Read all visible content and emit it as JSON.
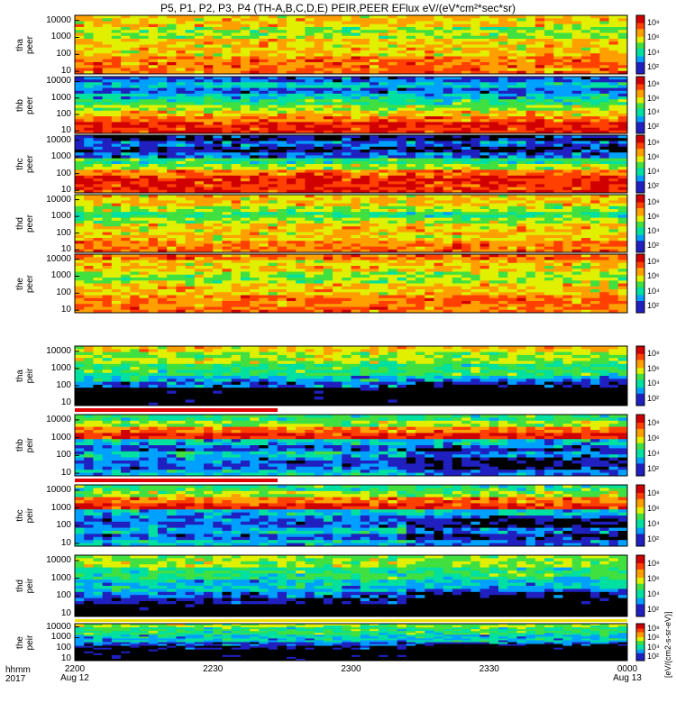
{
  "title": "P5, P1, P2, P3, P4 (TH-A,B,C,D,E) PEIR,PEER EFlux eV/(eV*cm²*sec*sr)",
  "colorbar_unit": "[eV/(cm2-s-sr-eV)]",
  "x_axis": {
    "label_hhmm": "hhmm",
    "label_year": "2017",
    "ticks": [
      {
        "time": "2200",
        "date": "Aug 12"
      },
      {
        "time": "2230",
        "date": ""
      },
      {
        "time": "2300",
        "date": ""
      },
      {
        "time": "2330",
        "date": ""
      },
      {
        "time": "0000",
        "date": "Aug 13"
      }
    ]
  },
  "chart_data": {
    "type": "heatmap",
    "x_range": [
      "2017-08-12 22:00",
      "2017-08-13 00:00"
    ],
    "y_scale": "log",
    "y_ticks": [
      "10",
      "100",
      "1000",
      "10000"
    ],
    "colorbar_ticks": [
      "10²",
      "10⁴",
      "10⁶",
      "10⁸"
    ],
    "colormap": [
      "#000000",
      "#2020c0",
      "#00a0ff",
      "#00e0a0",
      "#40e040",
      "#e0f000",
      "#ffa000",
      "#ff4000",
      "#d00000"
    ],
    "panels": [
      {
        "probe": "tha",
        "species": "peer"
      },
      {
        "probe": "thb",
        "species": "peer"
      },
      {
        "probe": "thc",
        "species": "peer"
      },
      {
        "probe": "thd",
        "species": "peer"
      },
      {
        "probe": "the",
        "species": "peer"
      },
      {
        "probe": "tha",
        "species": "peir"
      },
      {
        "probe": "thb",
        "species": "peir"
      },
      {
        "probe": "thc",
        "species": "peir"
      },
      {
        "probe": "thd",
        "species": "peir"
      },
      {
        "probe": "the",
        "species": "peir"
      }
    ]
  }
}
